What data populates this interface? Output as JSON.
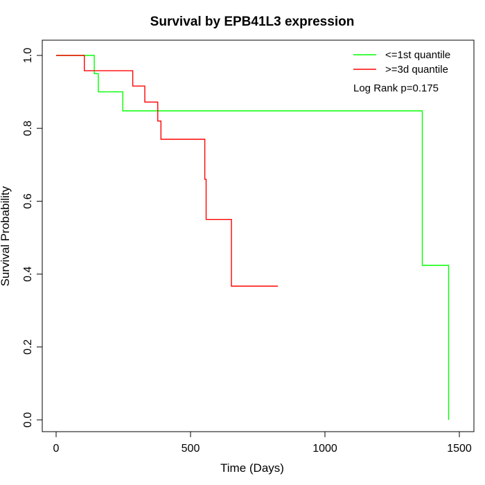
{
  "chart_data": {
    "type": "line",
    "title": "Survival by EPB41L3 expression",
    "xlabel": "Time (Days)",
    "ylabel": "Survival Probability",
    "xlim": [
      0,
      1500
    ],
    "ylim": [
      0,
      1
    ],
    "x_ticks": [
      "0",
      "500",
      "1000",
      "1500"
    ],
    "y_ticks": [
      "0.0",
      "0.2",
      "0.4",
      "0.6",
      "0.8",
      "1.0"
    ],
    "grid": false,
    "legend_position": "top-right",
    "annotation": "Log Rank p=0.175",
    "series": [
      {
        "name": "<=1st quantile",
        "color": "#00ff00",
        "points": [
          [
            0,
            1.0
          ],
          [
            142,
            1.0
          ],
          [
            142,
            0.95
          ],
          [
            157,
            0.95
          ],
          [
            157,
            0.9
          ],
          [
            248,
            0.9
          ],
          [
            248,
            0.848
          ],
          [
            1362,
            0.848
          ],
          [
            1362,
            0.424
          ],
          [
            1460,
            0.424
          ],
          [
            1460,
            0.0
          ]
        ]
      },
      {
        "name": ">=3d quantile",
        "color": "#ff0000",
        "points": [
          [
            0,
            1.0
          ],
          [
            105,
            1.0
          ],
          [
            105,
            0.958
          ],
          [
            285,
            0.958
          ],
          [
            285,
            0.916
          ],
          [
            330,
            0.916
          ],
          [
            330,
            0.872
          ],
          [
            378,
            0.872
          ],
          [
            378,
            0.82
          ],
          [
            390,
            0.82
          ],
          [
            390,
            0.77
          ],
          [
            553,
            0.77
          ],
          [
            553,
            0.66
          ],
          [
            558,
            0.66
          ],
          [
            558,
            0.55
          ],
          [
            652,
            0.55
          ],
          [
            652,
            0.367
          ],
          [
            825,
            0.367
          ]
        ]
      }
    ]
  }
}
